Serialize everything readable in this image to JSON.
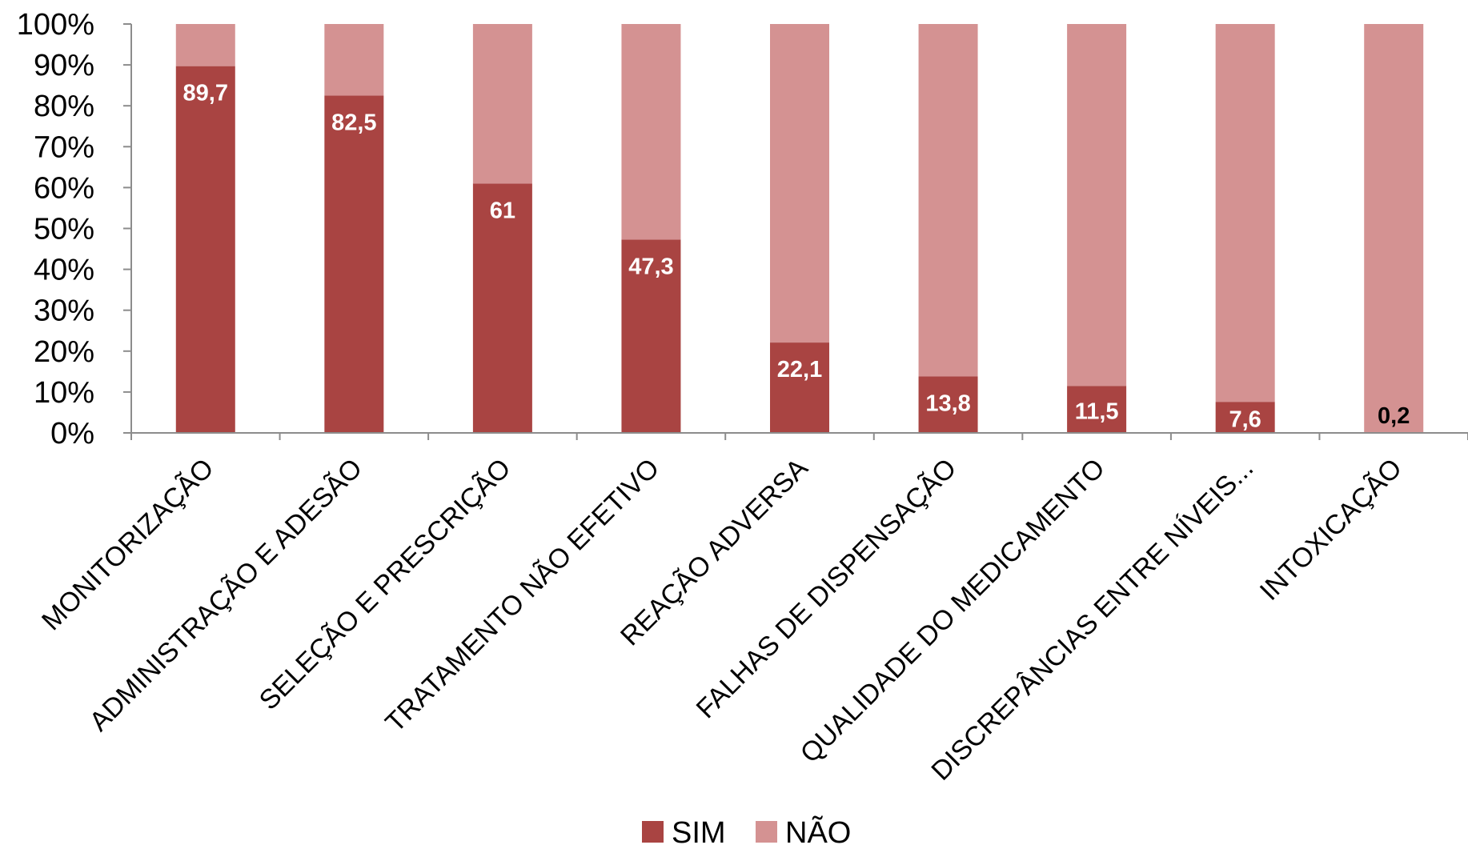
{
  "chart_data": {
    "type": "bar",
    "stacked": "percent",
    "categories": [
      "MONITORIZAÇÃO",
      "ADMINISTRAÇÃO E ADESÃO",
      "SELEÇÃO E PRESCRIÇÃO",
      "TRATAMENTO NÃO EFETIVO",
      "REAÇÃO ADVERSA",
      "FALHAS DE DISPENSAÇÃO",
      "QUALIDADE DO MEDICAMENTO",
      "DISCREPÂNCIAS ENTRE NÍVEIS...",
      "INTOXICAÇÃO"
    ],
    "series": [
      {
        "name": "SIM",
        "color": "#A94442",
        "values": [
          89.7,
          82.5,
          61,
          47.3,
          22.1,
          13.8,
          11.5,
          7.6,
          0.2
        ],
        "data_labels": [
          "89,7",
          "82,5",
          "61",
          "47,3",
          "22,1",
          "13,8",
          "11,5",
          "7,6",
          "0,2"
        ]
      },
      {
        "name": "NÃO",
        "color": "#D49292",
        "values": [
          10.3,
          17.5,
          39,
          52.7,
          77.9,
          86.2,
          88.5,
          92.4,
          99.8
        ]
      }
    ],
    "y_ticks": [
      "0%",
      "10%",
      "20%",
      "30%",
      "40%",
      "50%",
      "60%",
      "70%",
      "80%",
      "90%",
      "100%"
    ],
    "ylim": [
      0,
      100
    ],
    "title": "",
    "xlabel": "",
    "ylabel": "",
    "grid": false,
    "legend_position": "bottom"
  }
}
